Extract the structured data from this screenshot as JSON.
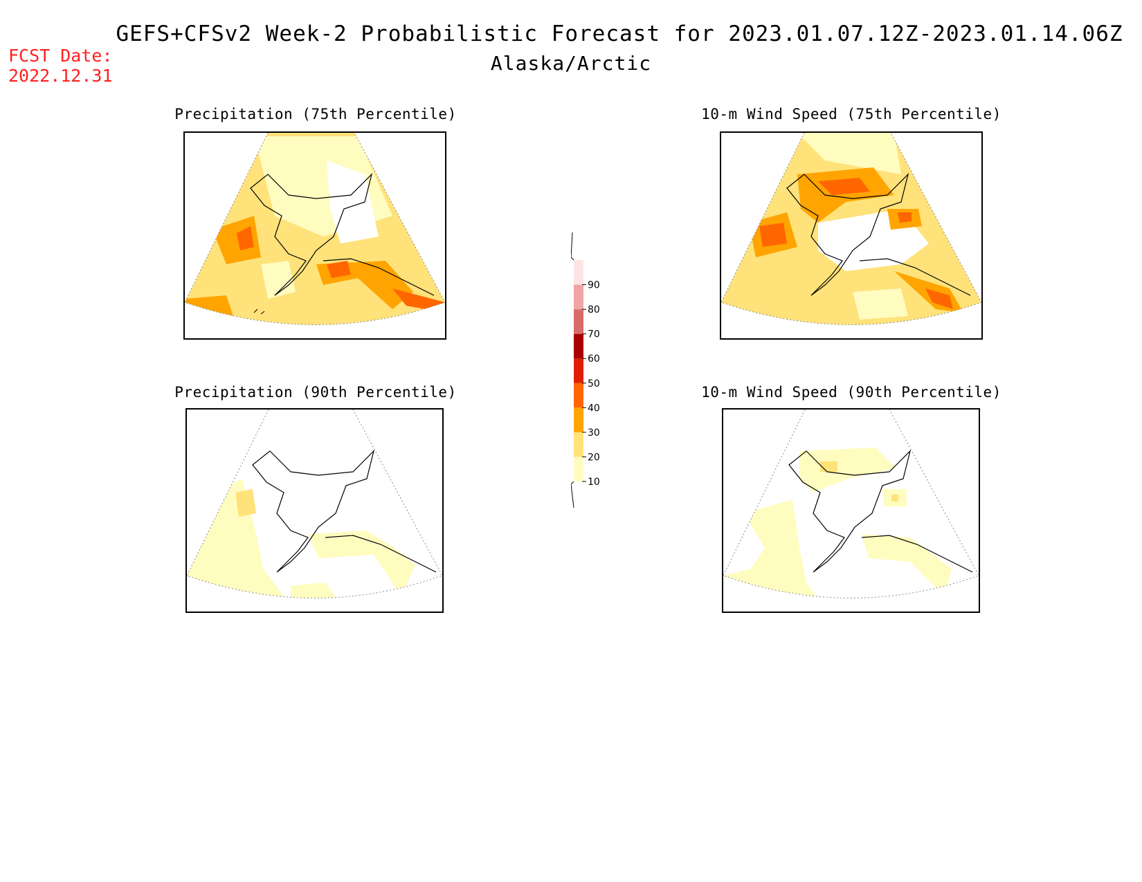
{
  "header": {
    "title": "GEFS+CFSv2 Week-2 Probabilistic Forecast for 2023.01.07.12Z-2023.01.14.06Z",
    "subtitle": "Alaska/Arctic",
    "fcst_label": "FCST Date:",
    "fcst_value": "2022.12.31"
  },
  "panels": [
    {
      "id": "precip-75",
      "title": "Precipitation (75th Percentile)"
    },
    {
      "id": "wind-75",
      "title": "10-m Wind Speed (75th Percentile)"
    },
    {
      "id": "precip-90",
      "title": "Precipitation (90th Percentile)"
    },
    {
      "id": "wind-90",
      "title": "10-m Wind Speed (90th Percentile)"
    }
  ],
  "legend": {
    "levels": [
      "10",
      "20",
      "30",
      "40",
      "50",
      "60",
      "70",
      "80",
      "90"
    ],
    "colors": [
      "#fffcc0",
      "#ffe27a",
      "#ffa400",
      "#ff6600",
      "#e01e00",
      "#a80000",
      "#d96a6a",
      "#f2a4a4",
      "#fde4e4"
    ]
  }
}
